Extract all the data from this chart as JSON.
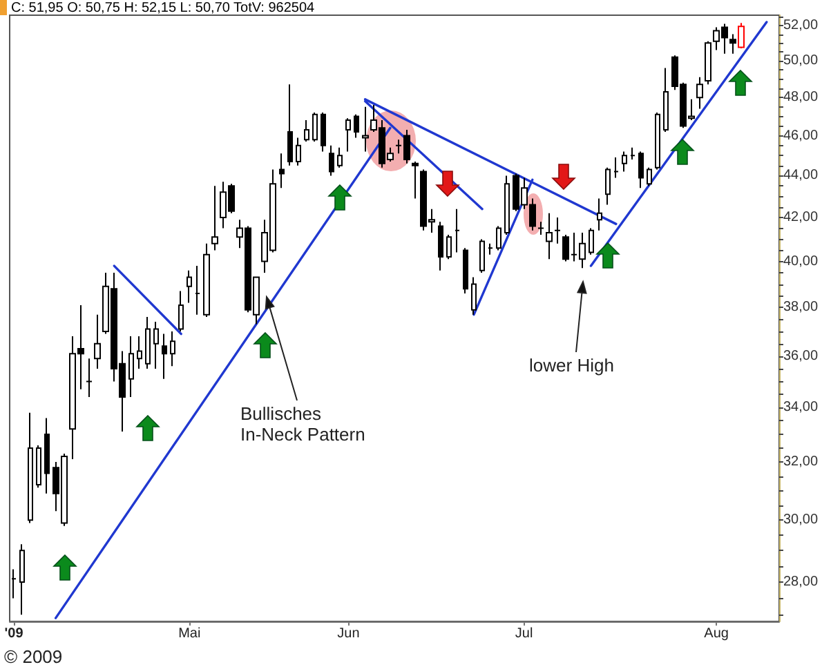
{
  "chart_data": {
    "type": "candlestick",
    "title": "C: 51,95 O: 50,75 H: 52,15 L: 50,70 TotV: 962504",
    "categories": [
      "'09",
      null,
      null,
      null,
      null,
      null,
      null,
      null,
      null,
      null,
      null,
      null,
      null,
      null,
      null,
      null,
      null,
      null,
      null,
      null,
      null,
      "Mai",
      null,
      null,
      null,
      null,
      null,
      null,
      null,
      null,
      null,
      null,
      null,
      null,
      null,
      null,
      null,
      null,
      null,
      null,
      "Jun",
      null,
      null,
      null,
      null,
      null,
      null,
      null,
      null,
      null,
      null,
      null,
      null,
      null,
      null,
      null,
      null,
      null,
      null,
      null,
      null,
      "Jul",
      null,
      null,
      null,
      null,
      null,
      null,
      null,
      null,
      null,
      null,
      null,
      null,
      null,
      null,
      null,
      null,
      null,
      null,
      null,
      null,
      null,
      null,
      "Aug",
      null,
      null,
      null,
      null,
      null,
      null,
      null
    ],
    "ohlc": [
      [
        28.1,
        28.4,
        27.5,
        28.1
      ],
      [
        28.0,
        29.2,
        27.0,
        29.0
      ],
      [
        30.0,
        33.8,
        29.9,
        32.5
      ],
      [
        31.2,
        32.6,
        31.1,
        32.5
      ],
      [
        33.0,
        33.6,
        30.9,
        31.6
      ],
      [
        31.8,
        32.0,
        30.3,
        30.9
      ],
      [
        29.9,
        32.3,
        29.8,
        32.2
      ],
      [
        33.2,
        36.8,
        32.1,
        36.1
      ],
      [
        36.3,
        38.1,
        34.7,
        36.1
      ],
      [
        35.0,
        35.9,
        34.4,
        35.0
      ],
      [
        35.9,
        37.7,
        35.5,
        36.5
      ],
      [
        37.0,
        39.5,
        36.9,
        38.9
      ],
      [
        38.8,
        39.5,
        35.0,
        35.5
      ],
      [
        35.7,
        36.2,
        33.1,
        34.4
      ],
      [
        35.1,
        36.8,
        34.4,
        36.1
      ],
      [
        35.9,
        36.8,
        35.5,
        36.2
      ],
      [
        35.7,
        37.6,
        35.5,
        37.1
      ],
      [
        36.5,
        37.4,
        35.5,
        37.1
      ],
      [
        36.4,
        36.9,
        35.1,
        36.1
      ],
      [
        36.1,
        37.0,
        35.6,
        36.6
      ],
      [
        37.1,
        38.7,
        37.0,
        38.1
      ],
      [
        38.9,
        39.6,
        38.2,
        39.3
      ],
      [
        38.6,
        39.8,
        37.7,
        38.6
      ],
      [
        37.7,
        40.8,
        37.6,
        40.3
      ],
      [
        40.8,
        43.5,
        40.5,
        41.1
      ],
      [
        42.0,
        43.7,
        41.5,
        43.2
      ],
      [
        43.5,
        43.6,
        42.2,
        42.3
      ],
      [
        41.1,
        41.9,
        40.6,
        41.5
      ],
      [
        41.5,
        41.6,
        37.8,
        37.9
      ],
      [
        37.7,
        39.3,
        37.3,
        39.3
      ],
      [
        40.0,
        41.9,
        39.5,
        41.3
      ],
      [
        40.5,
        44.3,
        40.4,
        43.6
      ],
      [
        44.3,
        45.1,
        43.4,
        44.1
      ],
      [
        46.2,
        48.7,
        44.5,
        44.7
      ],
      [
        44.7,
        45.9,
        44.5,
        45.5
      ],
      [
        45.8,
        46.8,
        45.7,
        46.3
      ],
      [
        45.8,
        47.2,
        45.7,
        47.1
      ],
      [
        47.1,
        47.2,
        45.2,
        45.5
      ],
      [
        45.1,
        45.5,
        44.0,
        44.2
      ],
      [
        44.5,
        45.4,
        44.4,
        45.0
      ],
      [
        46.3,
        46.9,
        45.2,
        46.8
      ],
      [
        47.0,
        47.1,
        45.9,
        46.2
      ],
      [
        45.9,
        47.5,
        45.2,
        46.0
      ],
      [
        46.3,
        47.6,
        46.2,
        46.8
      ],
      [
        46.4,
        46.8,
        44.4,
        44.6
      ],
      [
        44.8,
        45.4,
        44.7,
        45.1
      ],
      [
        45.5,
        45.8,
        45.1,
        45.5
      ],
      [
        46.0,
        46.3,
        44.6,
        44.8
      ],
      [
        44.6,
        44.7,
        42.9,
        44.5
      ],
      [
        44.2,
        44.3,
        41.4,
        41.6
      ],
      [
        41.8,
        42.4,
        41.3,
        41.9
      ],
      [
        41.6,
        41.8,
        39.6,
        40.2
      ],
      [
        40.2,
        41.2,
        40.1,
        41.1
      ],
      [
        41.4,
        42.4,
        40.4,
        41.4
      ],
      [
        40.5,
        40.6,
        38.6,
        38.8
      ],
      [
        37.9,
        39.3,
        37.7,
        39.0
      ],
      [
        39.6,
        41.0,
        39.5,
        40.9
      ],
      [
        40.6,
        40.8,
        40.3,
        40.6
      ],
      [
        40.6,
        41.6,
        40.5,
        41.5
      ],
      [
        41.3,
        44.0,
        41.2,
        43.6
      ],
      [
        44.0,
        44.1,
        42.3,
        42.4
      ],
      [
        42.6,
        43.9,
        42.4,
        43.4
      ],
      [
        42.6,
        42.9,
        41.4,
        41.6
      ],
      [
        41.5,
        41.8,
        41.2,
        41.5
      ],
      [
        40.9,
        42.2,
        40.1,
        41.3
      ],
      [
        41.4,
        42.0,
        40.8,
        41.4
      ],
      [
        41.1,
        41.2,
        40.0,
        40.1
      ],
      [
        40.3,
        41.3,
        40.0,
        40.3
      ],
      [
        40.1,
        41.3,
        39.7,
        40.8
      ],
      [
        40.4,
        41.5,
        40.3,
        41.4
      ],
      [
        41.9,
        42.9,
        41.4,
        42.2
      ],
      [
        43.1,
        44.4,
        42.6,
        44.3
      ],
      [
        44.2,
        44.9,
        43.9,
        44.2
      ],
      [
        44.6,
        45.2,
        44.2,
        45.0
      ],
      [
        45.0,
        45.4,
        44.8,
        45.0
      ],
      [
        45.1,
        45.2,
        43.4,
        43.9
      ],
      [
        43.6,
        44.4,
        43.5,
        44.3
      ],
      [
        44.4,
        47.2,
        44.3,
        47.1
      ],
      [
        46.3,
        49.6,
        46.2,
        48.3
      ],
      [
        50.2,
        50.3,
        48.4,
        48.6
      ],
      [
        48.7,
        48.8,
        46.4,
        46.5
      ],
      [
        46.9,
        47.9,
        46.8,
        47.0
      ],
      [
        48.0,
        49.1,
        47.4,
        48.7
      ],
      [
        48.9,
        51.1,
        48.7,
        51.0
      ],
      [
        51.1,
        51.9,
        50.6,
        51.7
      ],
      [
        51.9,
        52.1,
        50.4,
        51.3
      ],
      [
        51.2,
        51.5,
        50.4,
        51.0
      ],
      [
        50.75,
        52.15,
        50.7,
        51.95
      ],
      null,
      null,
      null,
      null
    ],
    "colors": [
      "#000000",
      "#000000",
      "#000000",
      "#000000",
      "#000000",
      "#000000",
      "#000000",
      "#000000",
      "#000000",
      "#000000",
      "#000000",
      "#000000",
      "#000000",
      "#000000",
      "#000000",
      "#000000",
      "#000000",
      "#000000",
      "#000000",
      "#000000",
      "#000000",
      "#000000",
      "#000000",
      "#000000",
      "#000000",
      "#000000",
      "#000000",
      "#000000",
      "#000000",
      "#000000",
      "#000000",
      "#000000",
      "#000000",
      "#000000",
      "#000000",
      "#000000",
      "#000000",
      "#000000",
      "#000000",
      "#000000",
      "#000000",
      "#000000",
      "#000000",
      "#000000",
      "#000000",
      "#000000",
      "#000000",
      "#000000",
      "#000000",
      "#000000",
      "#000000",
      "#000000",
      "#000000",
      "#000000",
      "#000000",
      "#000000",
      "#000000",
      "#000000",
      "#000000",
      "#000000",
      "#000000",
      "#000000",
      "#000000",
      "#000000",
      "#000000",
      "#000000",
      "#000000",
      "#000000",
      "#000000",
      "#000000",
      "#000000",
      "#000000",
      "#000000",
      "#000000",
      "#000000",
      "#000000",
      "#000000",
      "#000000",
      "#000000",
      "#000000",
      "#000000",
      "#000000",
      "#000000",
      "#000000",
      "#000000",
      "#000000",
      "#000000",
      "#ff0000",
      null,
      null,
      null,
      null
    ],
    "series": [
      {
        "type": "line",
        "color": "#2038d0",
        "values": [
          null,
          null,
          null,
          null,
          null,
          null,
          null,
          null,
          null,
          null,
          null,
          null,
          39.8,
          null,
          null,
          null,
          null,
          null,
          null,
          null,
          36.9,
          null,
          null,
          null,
          null,
          null,
          null,
          null,
          null,
          null,
          null,
          null,
          null,
          null,
          null,
          null,
          null,
          null,
          null,
          null,
          null,
          null,
          null,
          null,
          null,
          null,
          null,
          null,
          null,
          null,
          null,
          null,
          null,
          null,
          null,
          null,
          null,
          null,
          null,
          null,
          null,
          null,
          null,
          null,
          null,
          null,
          null,
          null,
          null,
          null,
          null,
          null,
          null,
          null,
          null,
          null,
          null,
          null,
          null,
          null,
          null,
          null,
          null,
          null,
          null,
          null,
          null,
          null,
          null,
          null,
          null,
          null
        ]
      },
      {
        "type": "line",
        "color": "#2038d0",
        "values": [
          null,
          null,
          null,
          null,
          null,
          26.9,
          null,
          null,
          null,
          null,
          null,
          null,
          null,
          null,
          null,
          null,
          null,
          null,
          null,
          null,
          null,
          null,
          null,
          null,
          null,
          null,
          null,
          null,
          null,
          null,
          null,
          null,
          null,
          null,
          null,
          null,
          null,
          null,
          null,
          null,
          null,
          null,
          null,
          null,
          null,
          46.4,
          null,
          null,
          null,
          null,
          null,
          null,
          null,
          null,
          null,
          null,
          null,
          null,
          null,
          null,
          null,
          null,
          null,
          null,
          null,
          null,
          null,
          null,
          null,
          null,
          null,
          null,
          null,
          null,
          null,
          null,
          null,
          null,
          null,
          null,
          null,
          null,
          null,
          null,
          null,
          null,
          null,
          null,
          null,
          null,
          null,
          null
        ]
      },
      {
        "type": "line",
        "color": "#2038d0",
        "values": [
          null,
          null,
          null,
          null,
          null,
          null,
          null,
          null,
          null,
          null,
          null,
          null,
          null,
          null,
          null,
          null,
          null,
          null,
          null,
          null,
          null,
          null,
          null,
          null,
          null,
          null,
          null,
          null,
          null,
          null,
          null,
          null,
          null,
          null,
          null,
          null,
          null,
          null,
          null,
          null,
          null,
          null,
          47.8,
          null,
          null,
          null,
          null,
          null,
          null,
          null,
          null,
          null,
          null,
          null,
          null,
          null,
          42.4,
          null,
          null,
          null,
          null,
          null,
          null,
          null,
          null,
          null,
          null,
          null,
          null,
          null,
          null,
          null,
          null,
          null,
          null,
          null,
          null,
          null,
          null,
          null,
          null,
          null,
          null,
          null,
          null,
          null,
          null,
          null,
          null,
          null,
          null,
          null
        ]
      },
      {
        "type": "line",
        "color": "#2038d0",
        "values": [
          null,
          null,
          null,
          null,
          null,
          null,
          null,
          null,
          null,
          null,
          null,
          null,
          null,
          null,
          null,
          null,
          null,
          null,
          null,
          null,
          null,
          null,
          null,
          null,
          null,
          null,
          null,
          null,
          null,
          null,
          null,
          null,
          null,
          null,
          null,
          null,
          null,
          null,
          null,
          null,
          null,
          null,
          47.9,
          null,
          null,
          null,
          null,
          null,
          null,
          null,
          null,
          null,
          null,
          null,
          null,
          null,
          null,
          null,
          null,
          null,
          null,
          null,
          null,
          null,
          null,
          null,
          null,
          null,
          null,
          null,
          null,
          null,
          41.7,
          null,
          null,
          null,
          null,
          null,
          null,
          null,
          null,
          null,
          null,
          null,
          null,
          null,
          null,
          null,
          null,
          null,
          null,
          null
        ]
      },
      {
        "type": "line",
        "color": "#2038d0",
        "values": [
          null,
          null,
          null,
          null,
          null,
          null,
          null,
          null,
          null,
          null,
          null,
          null,
          null,
          null,
          null,
          null,
          null,
          null,
          null,
          null,
          null,
          null,
          null,
          null,
          null,
          null,
          null,
          null,
          null,
          null,
          null,
          null,
          null,
          null,
          null,
          null,
          null,
          null,
          null,
          null,
          null,
          null,
          null,
          null,
          null,
          null,
          null,
          null,
          null,
          null,
          null,
          null,
          null,
          null,
          null,
          37.7,
          null,
          null,
          null,
          null,
          null,
          null,
          43.8,
          null,
          null,
          null,
          null,
          null,
          null,
          null,
          null,
          null,
          null,
          null,
          null,
          null,
          null,
          null,
          null,
          null,
          null,
          null,
          null,
          null,
          null,
          null,
          null,
          null,
          null,
          null,
          null,
          null
        ]
      },
      {
        "type": "line",
        "color": "#2038d0",
        "values": [
          null,
          null,
          null,
          null,
          null,
          null,
          null,
          null,
          null,
          null,
          null,
          null,
          null,
          null,
          null,
          null,
          null,
          null,
          null,
          null,
          null,
          null,
          null,
          null,
          null,
          null,
          null,
          null,
          null,
          null,
          null,
          null,
          null,
          null,
          null,
          null,
          null,
          null,
          null,
          null,
          null,
          null,
          null,
          null,
          null,
          null,
          null,
          null,
          null,
          null,
          null,
          null,
          null,
          null,
          null,
          null,
          null,
          null,
          null,
          null,
          null,
          null,
          null,
          null,
          null,
          null,
          null,
          null,
          null,
          39.8,
          null,
          null,
          null,
          null,
          null,
          null,
          null,
          null,
          null,
          null,
          null,
          null,
          null,
          null,
          null,
          null,
          null,
          null,
          null,
          null,
          52.2,
          null
        ]
      }
    ],
    "ylim": [
      26.8,
      52.6
    ],
    "yticks": [
      {
        "value": 27,
        "label": null
      },
      {
        "value": 27.5,
        "label": null
      },
      {
        "value": 28,
        "label": "28,00"
      },
      {
        "value": 28.5,
        "label": null
      },
      {
        "value": 29,
        "label": null
      },
      {
        "value": 29.5,
        "label": null
      },
      {
        "value": 30,
        "label": "30,00"
      },
      {
        "value": 30.5,
        "label": null
      },
      {
        "value": 31,
        "label": null
      },
      {
        "value": 31.5,
        "label": null
      },
      {
        "value": 32,
        "label": "32,00"
      },
      {
        "value": 32.5,
        "label": null
      },
      {
        "value": 33,
        "label": null
      },
      {
        "value": 33.5,
        "label": null
      },
      {
        "value": 34,
        "label": "34,00"
      },
      {
        "value": 34.5,
        "label": null
      },
      {
        "value": 35,
        "label": null
      },
      {
        "value": 35.5,
        "label": null
      },
      {
        "value": 36,
        "label": "36,00"
      },
      {
        "value": 36.5,
        "label": null
      },
      {
        "value": 37,
        "label": null
      },
      {
        "value": 37.5,
        "label": null
      },
      {
        "value": 38,
        "label": "38,00"
      },
      {
        "value": 38.5,
        "label": null
      },
      {
        "value": 39,
        "label": null
      },
      {
        "value": 39.5,
        "label": null
      },
      {
        "value": 40,
        "label": "40,00"
      },
      {
        "value": 40.5,
        "label": null
      },
      {
        "value": 41,
        "label": null
      },
      {
        "value": 41.5,
        "label": null
      },
      {
        "value": 42,
        "label": "42,00"
      },
      {
        "value": 42.5,
        "label": null
      },
      {
        "value": 43,
        "label": null
      },
      {
        "value": 43.5,
        "label": null
      },
      {
        "value": 44,
        "label": "44,00"
      },
      {
        "value": 44.5,
        "label": null
      },
      {
        "value": 45,
        "label": null
      },
      {
        "value": 45.5,
        "label": null
      },
      {
        "value": 46,
        "label": "46,00"
      },
      {
        "value": 46.5,
        "label": null
      },
      {
        "value": 47,
        "label": null
      },
      {
        "value": 47.5,
        "label": null
      },
      {
        "value": 48,
        "label": "48,00"
      },
      {
        "value": 48.5,
        "label": null
      },
      {
        "value": 49,
        "label": null
      },
      {
        "value": 49.5,
        "label": null
      },
      {
        "value": 50,
        "label": "50,00"
      },
      {
        "value": 50.5,
        "label": null
      },
      {
        "value": 51,
        "label": null
      },
      {
        "value": 51.5,
        "label": null
      },
      {
        "value": 52,
        "label": "52,00"
      },
      {
        "value": 52.5,
        "label": null
      }
    ],
    "log": true,
    "line_style": "solid",
    "annotations": [
      "Bullisches In-Neck Pattern",
      "lower High",
      "© 2009"
    ]
  }
}
